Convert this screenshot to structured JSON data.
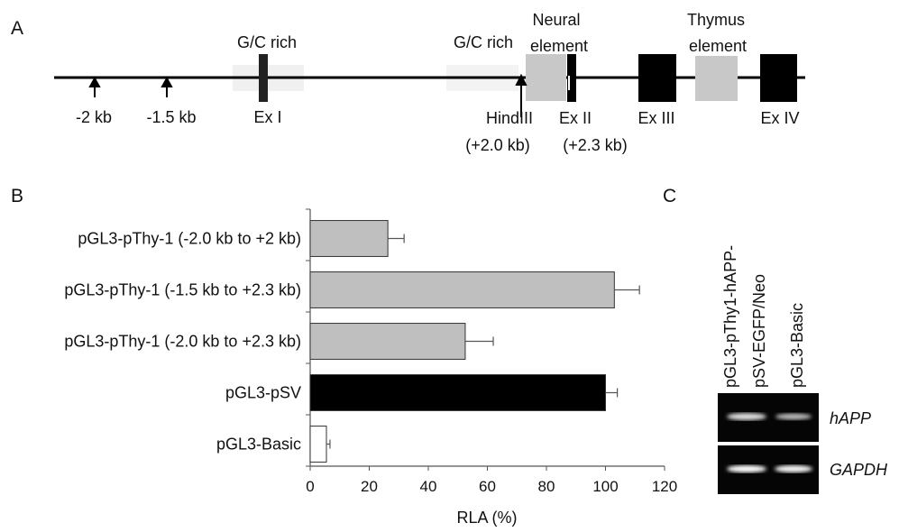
{
  "panel_a": {
    "label": "A",
    "gc_rich_1": "G/C rich",
    "gc_rich_2": "G/C rich",
    "neural_element": [
      "Neural",
      "element"
    ],
    "thymus_element": [
      "Thymus",
      "element"
    ],
    "site_minus_2": "-2 kb",
    "site_minus_1_5": "-1.5 kb",
    "exon_1": "Ex I",
    "hindiii": [
      "HindIII",
      "(+2.0 kb)"
    ],
    "exon_2": [
      "Ex II",
      "(+2.3 kb)"
    ],
    "exon_3": "Ex III",
    "exon_4": "Ex IV"
  },
  "chart_data": {
    "type": "barh",
    "panel_label": "B",
    "categories": [
      "pGL3-pThy-1 (-2.0 kb to +2 kb)",
      "pGL3-pThy-1 (-1.5 kb to +2.3 kb)",
      "pGL3-pThy-1 (-2.0 kb to +2.3 kb)",
      "pGL3-pSV",
      "pGL3-Basic"
    ],
    "values": [
      26.3,
      103,
      52.5,
      100,
      5.5
    ],
    "errors": [
      5.5,
      8.5,
      9.5,
      4,
      1.2
    ],
    "colors": [
      "#bfbfbf",
      "#bfbfbf",
      "#bfbfbf",
      "#000000",
      "#ffffff"
    ],
    "xlabel": "RLA (%)",
    "xlim": [
      0,
      120
    ],
    "xticks": [
      0,
      20,
      40,
      60,
      80,
      100,
      120
    ]
  },
  "panel_c": {
    "label": "C",
    "lanes": [
      [
        "pGL3-pThy1-hAPP-",
        "pSV-EGFP/Neo"
      ],
      [
        "pGL3-Basic"
      ]
    ],
    "rows": [
      "hAPP",
      "GAPDH"
    ]
  }
}
